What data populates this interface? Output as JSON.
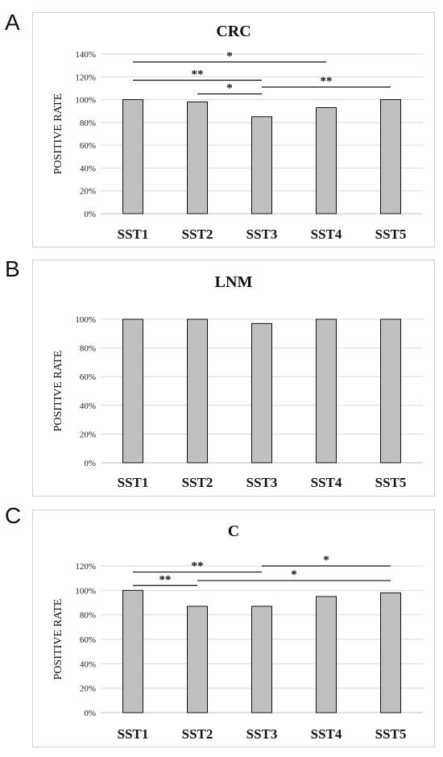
{
  "chart_data": [
    {
      "panel_label": "A",
      "type": "bar",
      "title": "CRC",
      "ylabel": "POSITIVE RATE",
      "categories": [
        "SST1",
        "SST2",
        "SST3",
        "SST4",
        "SST5"
      ],
      "values": [
        100,
        98,
        85,
        93,
        100
      ],
      "ylim": [
        0,
        140
      ],
      "yticks": [
        0,
        20,
        40,
        60,
        80,
        100,
        120,
        140
      ],
      "ytick_labels": [
        "0%",
        "20%",
        "40%",
        "60%",
        "80%",
        "100%",
        "120%",
        "140%"
      ],
      "grid": true,
      "bar_color": "#c0c0c0",
      "significance": [
        {
          "from": "SST1",
          "to": "SST4",
          "label": "*",
          "level": 133
        },
        {
          "from": "SST1",
          "to": "SST3",
          "label": "**",
          "level": 117
        },
        {
          "from": "SST3",
          "to": "SST5",
          "label": "**",
          "level": 111
        },
        {
          "from": "SST2",
          "to": "SST3",
          "label": "*",
          "level": 105
        }
      ]
    },
    {
      "panel_label": "B",
      "type": "bar",
      "title": "LNM",
      "ylabel": "POSITIVE RATE",
      "categories": [
        "SST1",
        "SST2",
        "SST3",
        "SST4",
        "SST5"
      ],
      "values": [
        100,
        100,
        97,
        100,
        100
      ],
      "ylim": [
        0,
        100
      ],
      "yticks": [
        0,
        20,
        40,
        60,
        80,
        100
      ],
      "ytick_labels": [
        "0%",
        "20%",
        "40%",
        "60%",
        "80%",
        "100%"
      ],
      "grid": true,
      "bar_color": "#c0c0c0",
      "significance": []
    },
    {
      "panel_label": "C",
      "type": "bar",
      "title": "C",
      "ylabel": "POSITIVE RATE",
      "categories": [
        "SST1",
        "SST2",
        "SST3",
        "SST4",
        "SST5"
      ],
      "values": [
        100,
        87,
        87,
        95,
        98
      ],
      "ylim": [
        0,
        120
      ],
      "yticks": [
        0,
        20,
        40,
        60,
        80,
        100,
        120
      ],
      "ytick_labels": [
        "0%",
        "20%",
        "40%",
        "60%",
        "80%",
        "100%",
        "120%"
      ],
      "grid": true,
      "bar_color": "#c0c0c0",
      "significance": [
        {
          "from": "SST3",
          "to": "SST5",
          "label": "*",
          "level": 120
        },
        {
          "from": "SST1",
          "to": "SST3",
          "label": "**",
          "level": 115
        },
        {
          "from": "SST2",
          "to": "SST5",
          "label": "*",
          "level": 108
        },
        {
          "from": "SST1",
          "to": "SST2",
          "label": "**",
          "level": 104
        }
      ]
    }
  ]
}
